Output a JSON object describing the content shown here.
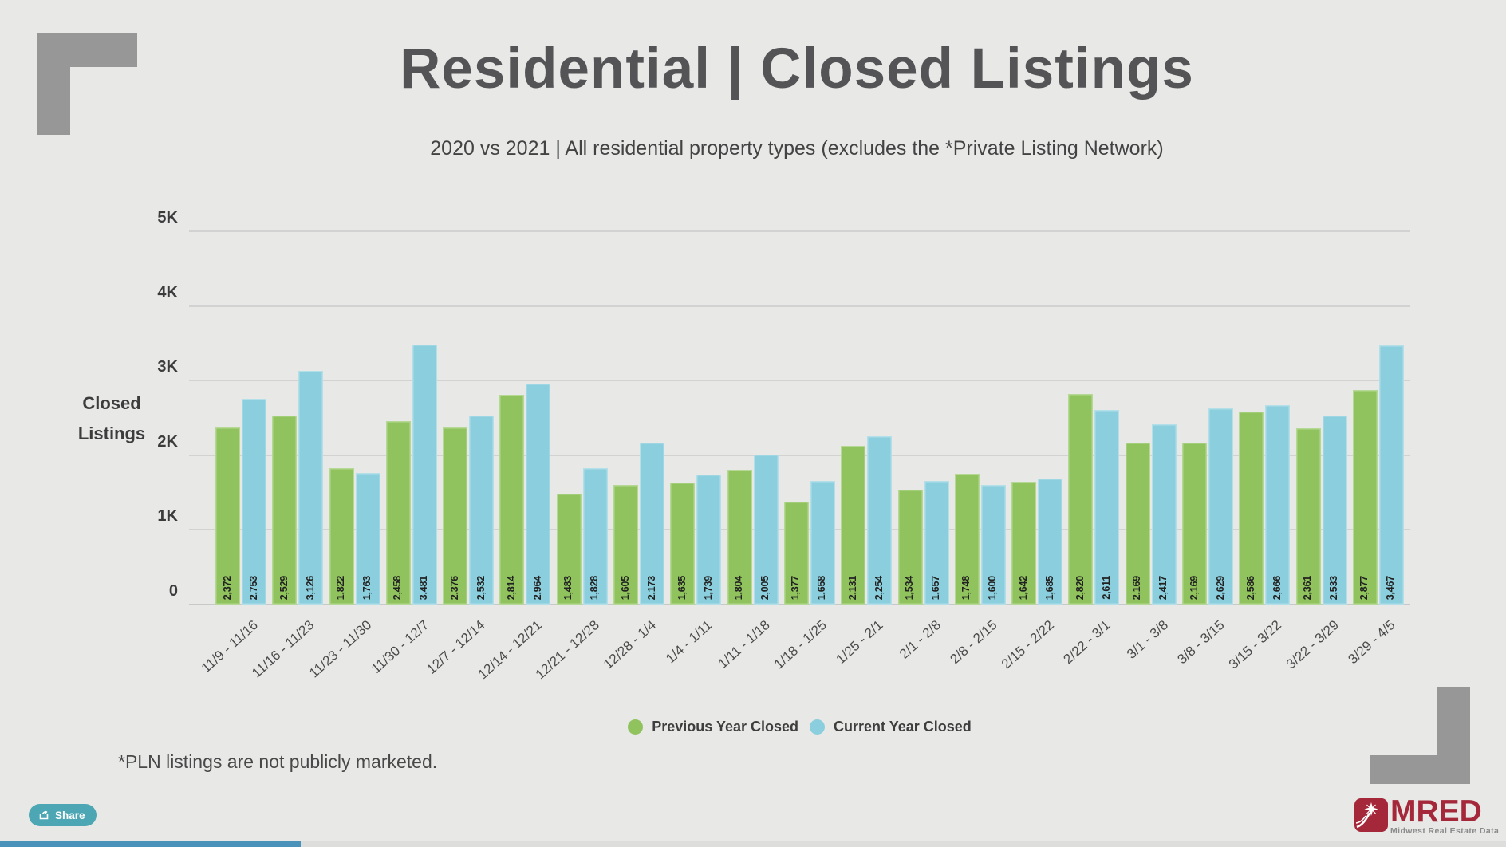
{
  "page": {
    "title": "Residential | Closed Listings",
    "subtitle": "2020 vs 2021 | All residential property types (excludes the *Private Listing Network)",
    "footnote": "*PLN listings are not publicly marketed."
  },
  "share": {
    "label": "Share",
    "color": "#4da6b4"
  },
  "logo": {
    "brand": "MRED",
    "tagline": "Midwest Real Estate Data",
    "brand_color": "#a5273a"
  },
  "scrollbar": {
    "thumb_color": "#4a92ba"
  },
  "chart_data": {
    "type": "bar",
    "title": "Residential | Closed Listings",
    "subtitle": "2020 vs 2021 | All residential property types (excludes the *Private Listing Network)",
    "ylabel": "Closed Listings",
    "xlabel": "",
    "ylim": [
      0,
      5000
    ],
    "grid": true,
    "legend_position": "bottom",
    "yticks": [
      {
        "label": "0",
        "value": 0
      },
      {
        "label": "1K",
        "value": 1000
      },
      {
        "label": "2K",
        "value": 2000
      },
      {
        "label": "3K",
        "value": 3000
      },
      {
        "label": "4K",
        "value": 4000
      },
      {
        "label": "5K",
        "value": 5000
      }
    ],
    "categories": [
      "11/9 - 11/16",
      "11/16 - 11/23",
      "11/23 - 11/30",
      "11/30 - 12/7",
      "12/7 - 12/14",
      "12/14 - 12/21",
      "12/21 - 12/28",
      "12/28 - 1/4",
      "1/4 - 1/11",
      "1/11 - 1/18",
      "1/18 - 1/25",
      "1/25 - 2/1",
      "2/1 - 2/8",
      "2/8 - 2/15",
      "2/15 - 2/22",
      "2/22 - 3/1",
      "3/1 - 3/8",
      "3/8 - 3/15",
      "3/15 - 3/22",
      "3/22 - 3/29",
      "3/29 - 4/5"
    ],
    "series": [
      {
        "name": "Previous Year Closed",
        "color": "#90c35d",
        "values": [
          2372,
          2529,
          1822,
          2458,
          2376,
          2814,
          1483,
          1605,
          1635,
          1804,
          1377,
          2131,
          1534,
          1748,
          1642,
          2820,
          2169,
          2169,
          2586,
          2361,
          2877
        ]
      },
      {
        "name": "Current Year Closed",
        "color": "#8bcedd",
        "values": [
          2753,
          3126,
          1763,
          3481,
          2532,
          2964,
          1828,
          2173,
          1739,
          2005,
          1658,
          2254,
          1657,
          1600,
          1685,
          2611,
          2417,
          2629,
          2666,
          2533,
          3467
        ]
      }
    ]
  }
}
